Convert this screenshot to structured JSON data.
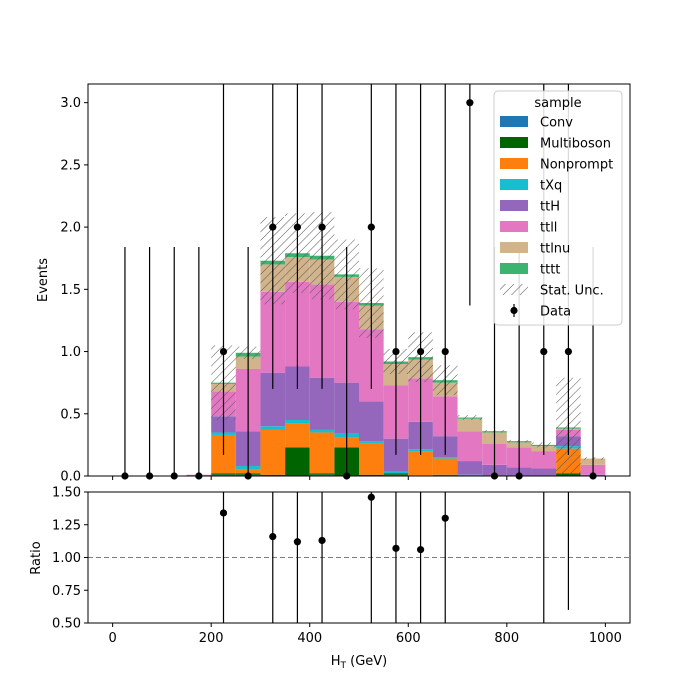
{
  "chart_data": [
    {
      "type": "bar",
      "stacked": true,
      "ylabel": "Events",
      "xlim": [
        -50,
        1050
      ],
      "ylim": [
        0,
        3.15
      ],
      "bin_edges": [
        0,
        50,
        100,
        150,
        200,
        250,
        300,
        350,
        400,
        450,
        500,
        550,
        600,
        650,
        700,
        750,
        800,
        850,
        900,
        950,
        1000
      ],
      "x_ticks": [
        0,
        200,
        400,
        600,
        800,
        1000
      ],
      "y_ticks": [
        "0.0",
        "0.5",
        "1.0",
        "1.5",
        "2.0",
        "2.5",
        "3.0"
      ],
      "legend_title": "sample",
      "legend_position": "upper right",
      "series": [
        {
          "name": "Conv",
          "color": "#1f77b4",
          "values": [
            0,
            0,
            0,
            0,
            0.01,
            0.01,
            0,
            0,
            0.01,
            0,
            0,
            0.01,
            0.005,
            0.01,
            0,
            0,
            0,
            0,
            0,
            0
          ]
        },
        {
          "name": "Multiboson",
          "color": "#006400",
          "values": [
            0,
            0,
            0,
            0,
            0.01,
            0.01,
            0.01,
            0.23,
            0.01,
            0.23,
            0.01,
            0.01,
            0,
            0,
            0,
            0,
            0,
            0,
            0.02,
            0
          ]
        },
        {
          "name": "Nonprompt",
          "color": "#ff7f0e",
          "values": [
            0,
            0,
            0,
            0,
            0.31,
            0.03,
            0.36,
            0.19,
            0.33,
            0.08,
            0.25,
            0,
            0.19,
            0.13,
            0,
            0,
            0,
            0,
            0.2,
            0
          ]
        },
        {
          "name": "tXq",
          "color": "#17becf",
          "values": [
            0,
            0,
            0,
            0,
            0.02,
            0.03,
            0.03,
            0.03,
            0.02,
            0.03,
            0.02,
            0.02,
            0.02,
            0.01,
            0.01,
            0,
            0,
            0,
            0.02,
            0
          ]
        },
        {
          "name": "ttH",
          "color": "#9467bd",
          "values": [
            0,
            0,
            0,
            0,
            0.13,
            0.28,
            0.43,
            0.43,
            0.42,
            0.41,
            0.32,
            0.26,
            0.22,
            0.17,
            0.11,
            0.09,
            0.07,
            0.06,
            0.08,
            0.01
          ]
        },
        {
          "name": "ttll",
          "color": "#e377c2",
          "values": [
            0,
            0,
            0,
            0.01,
            0.2,
            0.5,
            0.65,
            0.68,
            0.75,
            0.65,
            0.58,
            0.43,
            0.35,
            0.32,
            0.24,
            0.17,
            0.16,
            0.14,
            0.05,
            0.08
          ]
        },
        {
          "name": "ttlnu",
          "color": "#d2b48c",
          "values": [
            0,
            0,
            0,
            0,
            0.06,
            0.1,
            0.22,
            0.2,
            0.2,
            0.2,
            0.19,
            0.17,
            0.15,
            0.11,
            0.1,
            0.09,
            0.04,
            0.04,
            0.01,
            0.05
          ]
        },
        {
          "name": "tttt",
          "color": "#3cb371",
          "values": [
            0,
            0,
            0,
            0,
            0.01,
            0.03,
            0.03,
            0.03,
            0.03,
            0.02,
            0.02,
            0.02,
            0.02,
            0.02,
            0.01,
            0.01,
            0.01,
            0.01,
            0.01,
            0
          ]
        }
      ],
      "stat_unc_label": "Stat. Unc.",
      "stat_unc": [
        0,
        0,
        0,
        0,
        0.3,
        0.05,
        0.35,
        0.32,
        0.35,
        0.28,
        0.28,
        0.1,
        0.2,
        0.12,
        0.02,
        0.01,
        0.01,
        0.02,
        0.4,
        0.01
      ],
      "data": {
        "name": "Data",
        "x": [
          25,
          75,
          125,
          175,
          225,
          275,
          325,
          375,
          425,
          475,
          525,
          575,
          625,
          675,
          725,
          775,
          825,
          875,
          925,
          975
        ],
        "y": [
          0,
          0,
          0,
          0,
          1,
          0,
          2,
          2,
          2,
          0,
          2,
          1,
          1,
          1,
          3,
          0,
          0,
          1,
          1,
          0
        ],
        "yerr_low": [
          0,
          0,
          0,
          0,
          0.83,
          0,
          1.3,
          1.3,
          1.3,
          0,
          1.3,
          0.83,
          0.83,
          0.83,
          1.63,
          0,
          0,
          0.83,
          0.83,
          0
        ],
        "yerr_high": [
          1.84,
          1.84,
          1.84,
          1.84,
          2.3,
          1.84,
          2.64,
          2.64,
          2.64,
          1.84,
          2.64,
          2.3,
          2.3,
          2.3,
          2.92,
          1.84,
          1.84,
          2.3,
          2.3,
          1.84
        ]
      }
    },
    {
      "type": "scatter",
      "xlabel": "H$_T$ (GeV)",
      "xlabel_main": "H",
      "xlabel_sub": "T",
      "xlabel_rest": " (GeV)",
      "ylabel": "Ratio",
      "xlim": [
        -50,
        1050
      ],
      "ylim": [
        0.5,
        1.5
      ],
      "y_ticks": [
        "0.50",
        "0.75",
        "1.00",
        "1.25",
        "1.50"
      ],
      "x_ticks": [
        "0",
        "200",
        "400",
        "600",
        "800",
        "1000"
      ],
      "reference_line": 1.0,
      "x": [
        225,
        325,
        375,
        425,
        525,
        575,
        625,
        675,
        875,
        925
      ],
      "y": [
        1.34,
        1.16,
        1.12,
        1.13,
        1.46,
        1.07,
        1.06,
        1.3,
        null,
        null
      ],
      "err_low": [
        1.12,
        0.75,
        0.75,
        0.75,
        0.99,
        0.98,
        0.95,
        0.8,
        1.0,
        0.4
      ],
      "err_high": [
        0.5,
        0.5,
        0.5,
        0.5,
        0.5,
        0.5,
        0.5,
        0.5,
        0.5,
        0.5
      ]
    }
  ]
}
